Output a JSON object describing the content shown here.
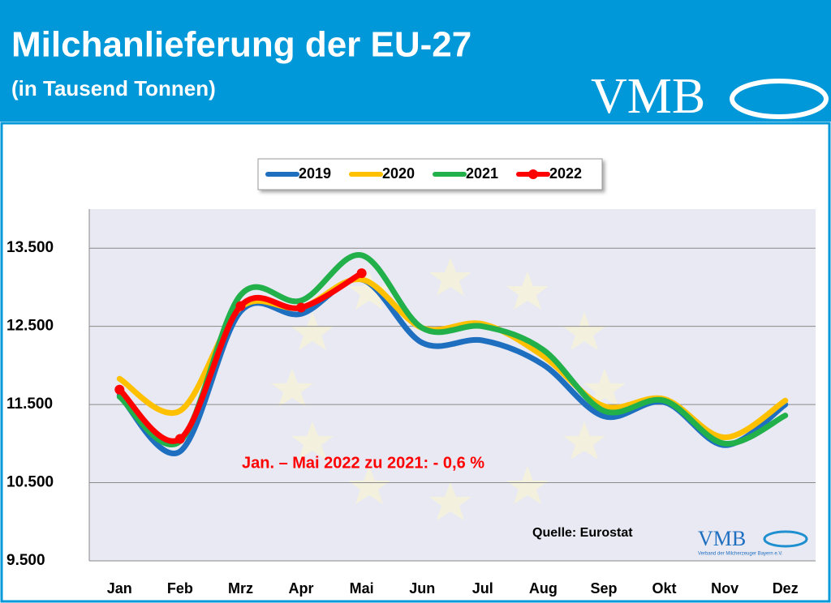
{
  "header": {
    "title": "Milchanlieferung der EU-27",
    "subtitle": "(in Tausend Tonnen)",
    "logo": "VMB"
  },
  "chart_data": {
    "type": "line",
    "categories": [
      "Jan",
      "Feb",
      "Mrz",
      "Apr",
      "Mai",
      "Jun",
      "Jul",
      "Aug",
      "Sep",
      "Okt",
      "Nov",
      "Dez"
    ],
    "series": [
      {
        "name": "2019",
        "color": "#1f6fc1",
        "values": [
          11620,
          10900,
          12690,
          12660,
          13100,
          12290,
          12320,
          12010,
          11350,
          11530,
          10980,
          11500
        ]
      },
      {
        "name": "2020",
        "color": "#ffc000",
        "values": [
          11830,
          11420,
          12740,
          12740,
          13100,
          12480,
          12530,
          12120,
          11480,
          11570,
          11080,
          11550
        ]
      },
      {
        "name": "2021",
        "color": "#22b04b",
        "values": [
          11600,
          11030,
          12900,
          12830,
          13410,
          12480,
          12500,
          12200,
          11420,
          11550,
          11000,
          11360
        ]
      },
      {
        "name": "2022",
        "color": "#ff0000",
        "markers": true,
        "values": [
          11690,
          11060,
          12760,
          12740,
          13180,
          null,
          null,
          null,
          null,
          null,
          null,
          null
        ]
      }
    ],
    "ylim": [
      9500,
      14000
    ],
    "yticks": [
      {
        "value": 9500,
        "label": "9.500"
      },
      {
        "value": 10500,
        "label": "10.500"
      },
      {
        "value": 11500,
        "label": "11.500"
      },
      {
        "value": 12500,
        "label": "12.500"
      },
      {
        "value": 13500,
        "label": "13.500"
      }
    ],
    "grid": true,
    "legend": "top",
    "annotation": "Jan. – Mai  2022 zu 2021: - 0,6 %",
    "source": "Quelle: Eurostat",
    "source_logo": "VMB",
    "source_logo_caption": "Verband der Milcherzeuger Bayern e.V."
  }
}
